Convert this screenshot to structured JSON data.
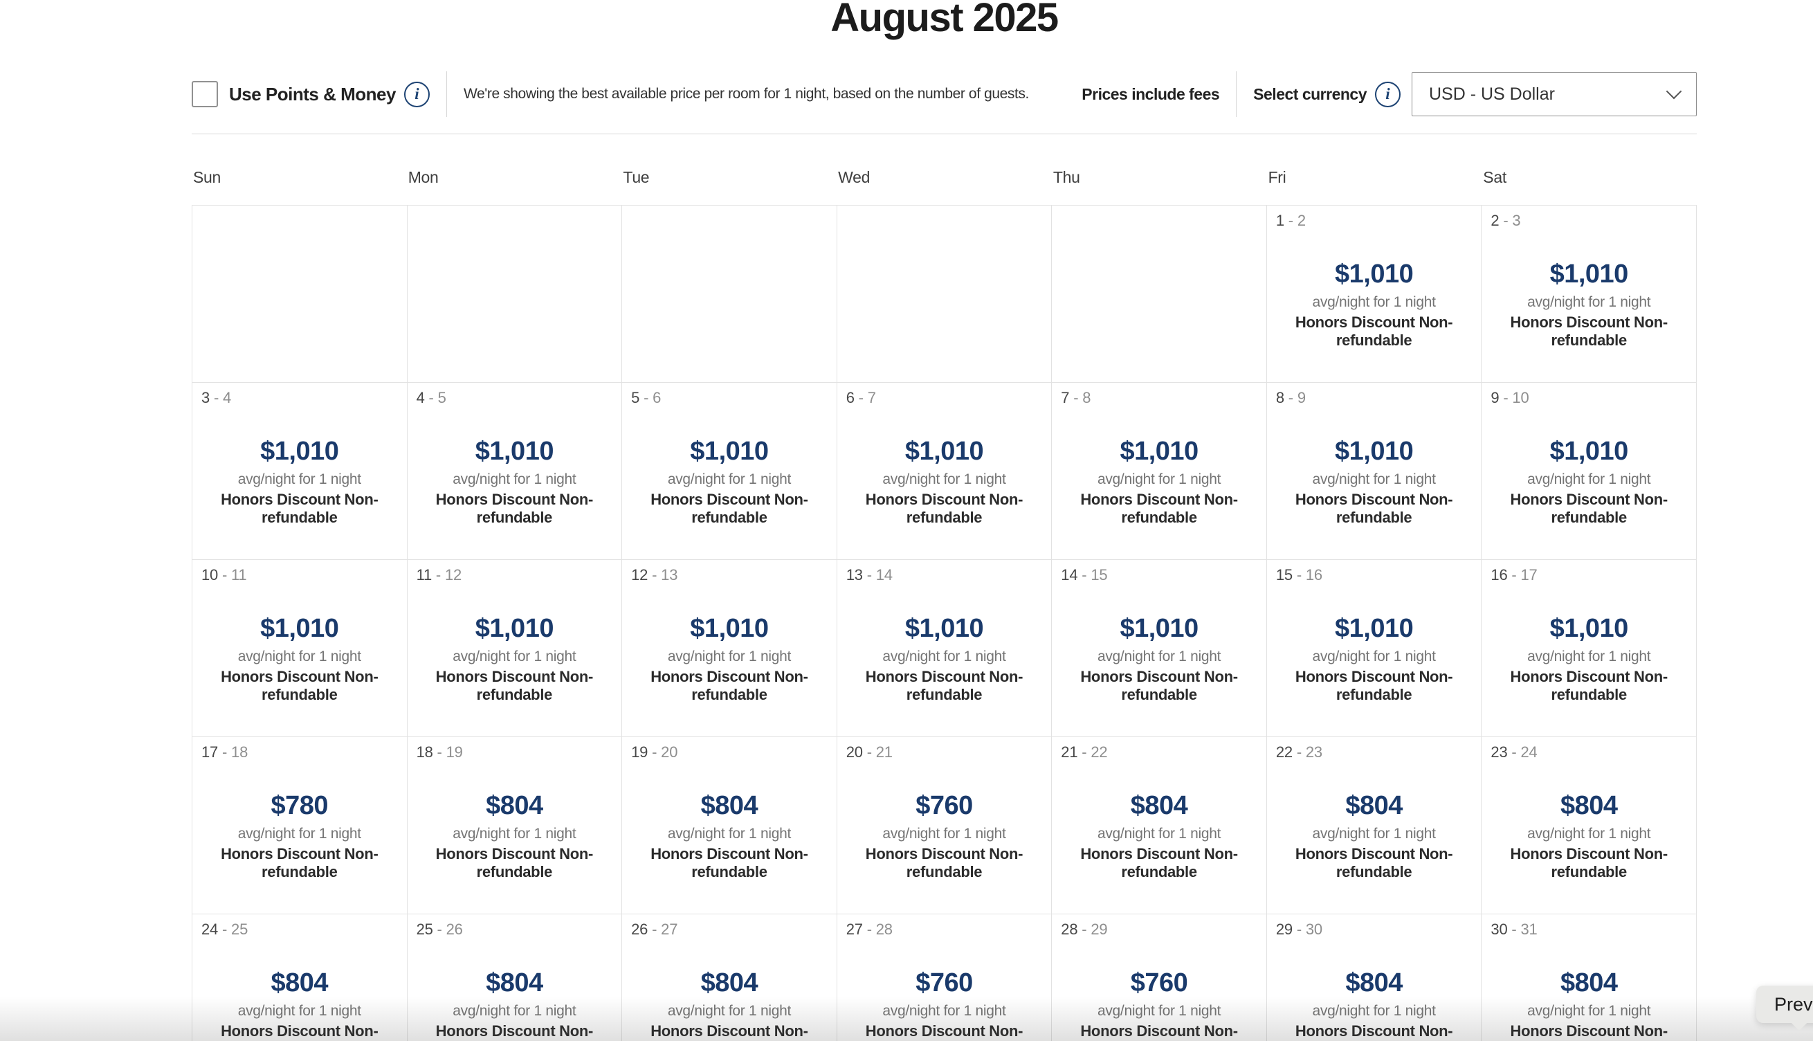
{
  "title": "August 2025",
  "controls": {
    "use_points_label": "Use Points & Money",
    "description": "We're showing the best available price per room for 1 night, based on the number of guests.",
    "prices_include_fees": "Prices include fees",
    "select_currency_label": "Select currency",
    "currency": {
      "selected": "USD - US Dollar"
    }
  },
  "icons": {
    "info": "i"
  },
  "calendar": {
    "day_headers": [
      "Sun",
      "Mon",
      "Tue",
      "Wed",
      "Thu",
      "Fri",
      "Sat"
    ],
    "date_separator": " - ",
    "avg_night_label": "avg/night for 1 night",
    "rate_name": "Honors Discount Non-refundable",
    "weeks": [
      [
        null,
        null,
        null,
        null,
        null,
        {
          "checkin": "1",
          "checkout": "2",
          "price": "$1,010"
        },
        {
          "checkin": "2",
          "checkout": "3",
          "price": "$1,010"
        }
      ],
      [
        {
          "checkin": "3",
          "checkout": "4",
          "price": "$1,010"
        },
        {
          "checkin": "4",
          "checkout": "5",
          "price": "$1,010"
        },
        {
          "checkin": "5",
          "checkout": "6",
          "price": "$1,010"
        },
        {
          "checkin": "6",
          "checkout": "7",
          "price": "$1,010"
        },
        {
          "checkin": "7",
          "checkout": "8",
          "price": "$1,010"
        },
        {
          "checkin": "8",
          "checkout": "9",
          "price": "$1,010"
        },
        {
          "checkin": "9",
          "checkout": "10",
          "price": "$1,010"
        }
      ],
      [
        {
          "checkin": "10",
          "checkout": "11",
          "price": "$1,010"
        },
        {
          "checkin": "11",
          "checkout": "12",
          "price": "$1,010"
        },
        {
          "checkin": "12",
          "checkout": "13",
          "price": "$1,010"
        },
        {
          "checkin": "13",
          "checkout": "14",
          "price": "$1,010"
        },
        {
          "checkin": "14",
          "checkout": "15",
          "price": "$1,010"
        },
        {
          "checkin": "15",
          "checkout": "16",
          "price": "$1,010"
        },
        {
          "checkin": "16",
          "checkout": "17",
          "price": "$1,010"
        }
      ],
      [
        {
          "checkin": "17",
          "checkout": "18",
          "price": "$780"
        },
        {
          "checkin": "18",
          "checkout": "19",
          "price": "$804"
        },
        {
          "checkin": "19",
          "checkout": "20",
          "price": "$804"
        },
        {
          "checkin": "20",
          "checkout": "21",
          "price": "$760"
        },
        {
          "checkin": "21",
          "checkout": "22",
          "price": "$804"
        },
        {
          "checkin": "22",
          "checkout": "23",
          "price": "$804"
        },
        {
          "checkin": "23",
          "checkout": "24",
          "price": "$804"
        }
      ],
      [
        {
          "checkin": "24",
          "checkout": "25",
          "price": "$804"
        },
        {
          "checkin": "25",
          "checkout": "26",
          "price": "$804"
        },
        {
          "checkin": "26",
          "checkout": "27",
          "price": "$804"
        },
        {
          "checkin": "27",
          "checkout": "28",
          "price": "$760"
        },
        {
          "checkin": "28",
          "checkout": "29",
          "price": "$760"
        },
        {
          "checkin": "29",
          "checkout": "30",
          "price": "$804"
        },
        {
          "checkin": "30",
          "checkout": "31",
          "price": "$804"
        }
      ]
    ]
  },
  "tooltip": {
    "label": "Prev"
  },
  "colors": {
    "price_text": "#1a3a6b",
    "info_icon": "#1d4373",
    "grid_border": "#e2e2e2"
  }
}
